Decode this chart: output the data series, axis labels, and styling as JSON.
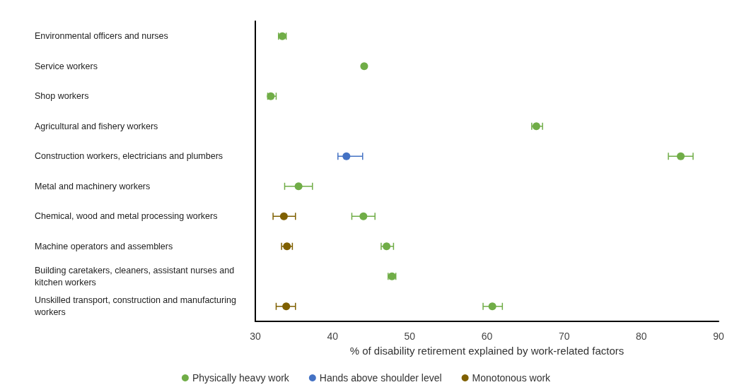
{
  "chart_data": {
    "type": "scatter",
    "orientation": "horizontal",
    "xlabel": "% of disability retirement explained by work-related factors",
    "categories": [
      "Environmental officers and nurses",
      "Service workers",
      "Shop workers",
      "Agricultural and fishery workers",
      "Construction workers, electricians and plumbers",
      "Metal and machinery workers",
      "Chemical, wood and metal processing workers",
      "Machine operators and assemblers",
      "Building caretakers, cleaners, assistant nurses and kitchen workers",
      "Unskilled transport, construction and manufacturing workers"
    ],
    "series": [
      {
        "name": "Physically heavy work",
        "color": "#70ad47",
        "values": [
          33.5,
          44.1,
          32.0,
          66.4,
          85.1,
          35.6,
          44.0,
          47.0,
          47.7,
          60.7
        ],
        "errors": [
          [
            33.0,
            34.0
          ],
          null,
          [
            31.6,
            32.7
          ],
          [
            65.8,
            67.2
          ],
          [
            83.5,
            86.7
          ],
          [
            33.8,
            37.4
          ],
          [
            42.5,
            45.5
          ],
          [
            46.3,
            47.9
          ],
          [
            47.2,
            48.2
          ],
          [
            59.5,
            62.0
          ]
        ]
      },
      {
        "name": "Hands above shoulder level",
        "color": "#4472c4",
        "values": [
          null,
          null,
          null,
          null,
          41.8,
          null,
          null,
          null,
          null,
          null
        ],
        "errors": [
          null,
          null,
          null,
          null,
          [
            40.7,
            43.9
          ],
          null,
          null,
          null,
          null,
          null
        ]
      },
      {
        "name": "Monotonous work",
        "color": "#7f6000",
        "values": [
          null,
          null,
          null,
          null,
          null,
          null,
          33.7,
          34.1,
          null,
          34.0
        ],
        "errors": [
          null,
          null,
          null,
          null,
          null,
          null,
          [
            32.3,
            35.2
          ],
          [
            33.4,
            34.8
          ],
          null,
          [
            32.7,
            35.2
          ]
        ]
      }
    ],
    "xlim": [
      30,
      90
    ],
    "xticks": [
      30,
      40,
      50,
      60,
      70,
      80,
      90
    ],
    "grid": false,
    "legend": "bottom",
    "marker": "circle"
  }
}
